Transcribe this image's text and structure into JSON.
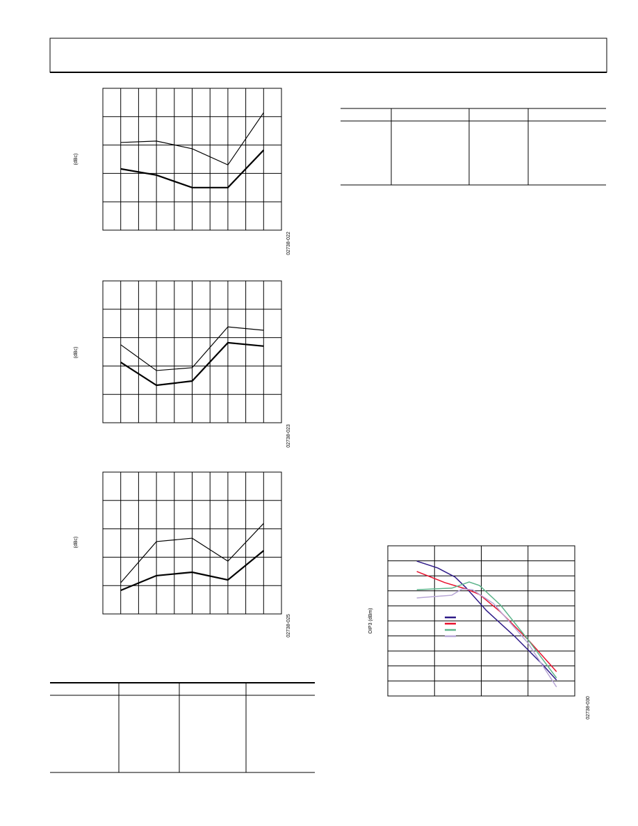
{
  "chart_data": [
    {
      "type": "line",
      "ylabel": "(dBc)",
      "figure_id": "02738-022",
      "xlim": [
        0,
        10
      ],
      "ylim": [
        0,
        5
      ],
      "grid": true,
      "x": [
        1,
        3,
        5,
        7,
        9
      ],
      "series": [
        {
          "color": "#000000",
          "line_width": 1.2,
          "values": [
            3.09,
            3.14,
            2.87,
            2.3,
            4.14
          ]
        },
        {
          "color": "#000000",
          "line_width": 2.2,
          "values": [
            2.16,
            1.94,
            1.5,
            1.5,
            2.82
          ]
        }
      ]
    },
    {
      "type": "line",
      "ylabel": "(dBc)",
      "figure_id": "02738-023",
      "xlim": [
        0,
        10
      ],
      "ylim": [
        0,
        5
      ],
      "grid": true,
      "x": [
        1,
        3,
        5,
        7,
        9
      ],
      "series": [
        {
          "color": "#000000",
          "line_width": 1.2,
          "values": [
            2.75,
            1.84,
            1.94,
            3.38,
            3.26
          ]
        },
        {
          "color": "#000000",
          "line_width": 2.2,
          "values": [
            2.13,
            1.32,
            1.47,
            2.82,
            2.7
          ]
        }
      ]
    },
    {
      "type": "line",
      "ylabel": "(dBc)",
      "figure_id": "02738-025",
      "xlim": [
        0,
        10
      ],
      "ylim": [
        0,
        5
      ],
      "grid": true,
      "x": [
        1,
        3,
        5,
        7,
        9
      ],
      "series": [
        {
          "color": "#000000",
          "line_width": 1.2,
          "values": [
            1.1,
            2.55,
            2.67,
            1.86,
            3.19
          ]
        },
        {
          "color": "#000000",
          "line_width": 2.2,
          "values": [
            0.83,
            1.35,
            1.47,
            1.2,
            2.23
          ]
        }
      ]
    },
    {
      "type": "line",
      "ylabel": "OIP3 (dBm)",
      "figure_id": "02738-030",
      "xlim": [
        0,
        4
      ],
      "ylim": [
        0,
        10
      ],
      "grid": true,
      "series": [
        {
          "color": "#2e1a87",
          "line_width": 1.5,
          "x": [
            0.62,
            1.07,
            1.44,
            1.67,
            2.11,
            2.71,
            3.3,
            3.61
          ],
          "values": [
            8.98,
            8.52,
            7.92,
            7.22,
            5.69,
            3.98,
            2.13,
            1.06
          ]
        },
        {
          "color": "#e8112d",
          "line_width": 1.5,
          "x": [
            0.62,
            1.22,
            1.67,
            1.96,
            2.41,
            3.0,
            3.61
          ],
          "values": [
            8.29,
            7.55,
            7.13,
            6.76,
            5.6,
            3.75,
            1.62
          ]
        },
        {
          "color": "#5bb38a",
          "line_width": 1.5,
          "x": [
            0.62,
            1.37,
            1.74,
            1.96,
            2.41,
            3.0,
            3.61
          ],
          "values": [
            7.08,
            7.18,
            7.59,
            7.36,
            6.06,
            3.75,
            1.2
          ]
        },
        {
          "color": "#b7a6d6",
          "line_width": 1.5,
          "x": [
            0.62,
            1.37,
            1.59,
            1.81,
            2.26,
            3.0,
            3.61
          ],
          "values": [
            6.53,
            6.71,
            7.13,
            7.08,
            6.16,
            3.52,
            0.6
          ]
        }
      ]
    }
  ]
}
